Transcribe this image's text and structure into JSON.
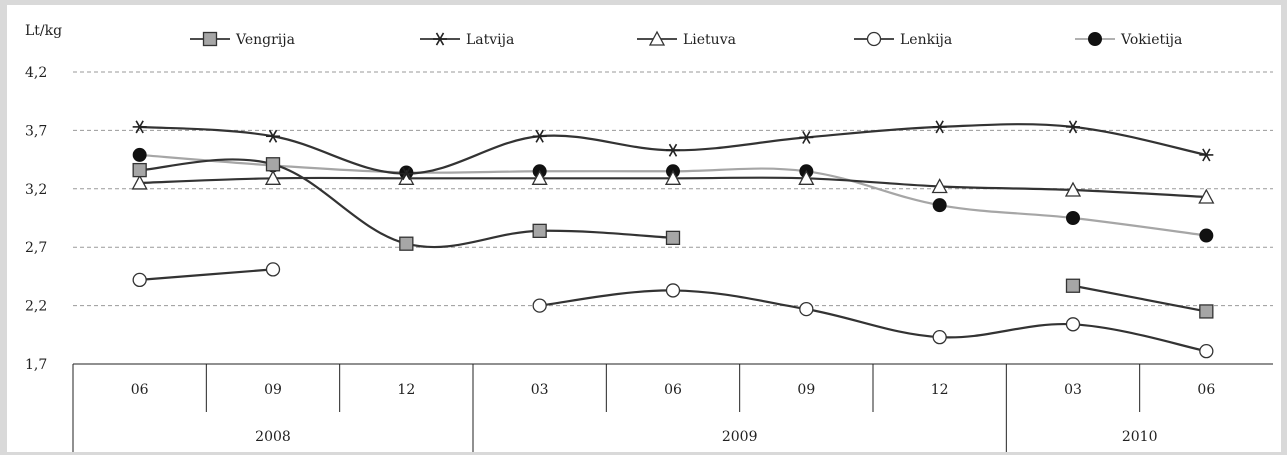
{
  "chart_data": {
    "type": "line",
    "ylabel": "Lt/kg",
    "ylim": [
      1.7,
      4.2
    ],
    "y_ticks": [
      "4,2",
      "3,7",
      "3,2",
      "2,7",
      "2,2",
      "1,7"
    ],
    "y_tick_values": [
      4.2,
      3.7,
      3.2,
      2.7,
      2.2,
      1.7
    ],
    "grid": "horizontal-dashed",
    "legend_position": "top",
    "categories": [
      "06",
      "09",
      "12",
      "03",
      "06",
      "09",
      "12",
      "03",
      "06"
    ],
    "year_groups": [
      {
        "label": "2008",
        "start": 0,
        "end": 2
      },
      {
        "label": "2009",
        "start": 3,
        "end": 6
      },
      {
        "label": "2010",
        "start": 7,
        "end": 8
      }
    ],
    "series": [
      {
        "name": "Vengrija",
        "marker": "square",
        "color": "#333333",
        "marker_fill": "#a6a6a6",
        "values": [
          3.36,
          3.41,
          2.73,
          2.84,
          2.78,
          null,
          null,
          2.37,
          2.15
        ]
      },
      {
        "name": "Latvija",
        "marker": "asterisk",
        "color": "#333333",
        "marker_fill": "#333333",
        "values": [
          3.73,
          3.65,
          3.33,
          3.65,
          3.53,
          3.64,
          3.73,
          3.73,
          3.49
        ]
      },
      {
        "name": "Lietuva",
        "marker": "triangle",
        "color": "#333333",
        "marker_fill": "#ffffff",
        "values": [
          3.25,
          3.29,
          3.29,
          3.29,
          3.29,
          3.29,
          3.22,
          3.19,
          3.13
        ]
      },
      {
        "name": "Lenkija",
        "marker": "circle-open",
        "color": "#333333",
        "marker_fill": "#ffffff",
        "values": [
          2.42,
          2.51,
          null,
          2.2,
          2.33,
          2.17,
          1.93,
          2.04,
          1.81
        ]
      },
      {
        "name": "Vokietija",
        "marker": "circle-filled",
        "color": "#a6a6a6",
        "marker_fill": "#111111",
        "values": [
          3.49,
          3.4,
          3.34,
          3.35,
          3.35,
          3.35,
          3.06,
          2.95,
          2.8
        ]
      }
    ]
  }
}
